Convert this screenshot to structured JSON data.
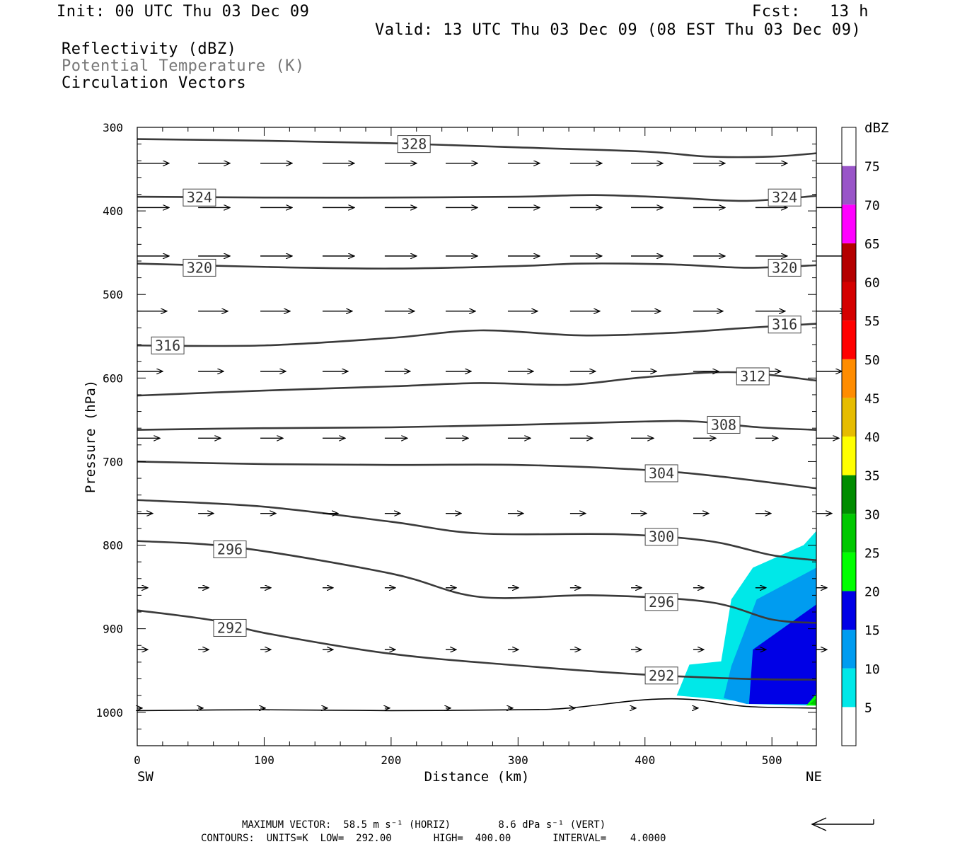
{
  "header": {
    "init": "Init: 00 UTC Thu 03 Dec 09",
    "fcst": "Fcst:   13 h",
    "valid": "Valid: 13 UTC Thu 03 Dec 09 (08 EST Thu 03 Dec 09)",
    "field1": "Reflectivity (dBZ)",
    "field2": "Potential Temperature (K)",
    "field3": "Circulation Vectors"
  },
  "footer": {
    "line1": "MAXIMUM VECTOR:  58.5 m s⁻¹ (HORIZ)        8.6 dPa s⁻¹ (VERT)",
    "line2": "CONTOURS:  UNITS=K  LOW=  292.00       HIGH=  400.00       INTERVAL=    4.0000"
  },
  "colors": {
    "contour": "#3a3a3a",
    "gray_text": "#777777"
  },
  "chart_data": {
    "type": "contour",
    "xlabel": "Distance (km)",
    "ylabel": "Pressure (hPa)",
    "xlim": [
      0,
      535
    ],
    "ylim": [
      1040,
      300
    ],
    "x_ticks": [
      0,
      100,
      200,
      300,
      400,
      500
    ],
    "y_ticks": [
      300,
      400,
      500,
      600,
      700,
      800,
      900,
      1000
    ],
    "x_left_label": "SW",
    "x_right_label": "NE",
    "colorbar": {
      "title": "dBZ",
      "ticks": [
        "5",
        "10",
        "15",
        "20",
        "25",
        "30",
        "35",
        "40",
        "45",
        "50",
        "55",
        "60",
        "65",
        "70",
        "75"
      ],
      "bins": [
        {
          "from": 0,
          "to": 5,
          "color": "#ffffff"
        },
        {
          "from": 5,
          "to": 10,
          "color": "#00e8e8"
        },
        {
          "from": 10,
          "to": 15,
          "color": "#009cf0"
        },
        {
          "from": 15,
          "to": 20,
          "color": "#0000e6"
        },
        {
          "from": 20,
          "to": 25,
          "color": "#00ff00"
        },
        {
          "from": 25,
          "to": 30,
          "color": "#00c800"
        },
        {
          "from": 30,
          "to": 35,
          "color": "#008c00"
        },
        {
          "from": 35,
          "to": 40,
          "color": "#ffff00"
        },
        {
          "from": 40,
          "to": 45,
          "color": "#e6bc00"
        },
        {
          "from": 45,
          "to": 50,
          "color": "#ff8c00"
        },
        {
          "from": 50,
          "to": 55,
          "color": "#ff0000"
        },
        {
          "from": 55,
          "to": 60,
          "color": "#d40000"
        },
        {
          "from": 60,
          "to": 65,
          "color": "#b40000"
        },
        {
          "from": 65,
          "to": 70,
          "color": "#ff00ff"
        },
        {
          "from": 70,
          "to": 75,
          "color": "#9955c8"
        },
        {
          "from": 75,
          "to": 80,
          "color": "#ffffff"
        }
      ]
    },
    "reflectivity_regions": [
      {
        "dbz": 5,
        "color": "#00e8e8",
        "points": [
          [
            425,
            980
          ],
          [
            435,
            943
          ],
          [
            460,
            939
          ],
          [
            468,
            865
          ],
          [
            485,
            827
          ],
          [
            525,
            800
          ],
          [
            535,
            783
          ],
          [
            535,
            990
          ],
          [
            485,
            988
          ]
        ]
      },
      {
        "dbz": 10,
        "color": "#009cf0",
        "points": [
          [
            462,
            983
          ],
          [
            468,
            945
          ],
          [
            488,
            865
          ],
          [
            535,
            827
          ],
          [
            535,
            992
          ],
          [
            480,
            990
          ]
        ]
      },
      {
        "dbz": 15,
        "color": "#0000e6",
        "points": [
          [
            482,
            990
          ],
          [
            485,
            925
          ],
          [
            535,
            871
          ],
          [
            535,
            975
          ],
          [
            532,
            990
          ]
        ]
      },
      {
        "dbz": 20,
        "color": "#00ff00",
        "points": [
          [
            527,
            992
          ],
          [
            535,
            978
          ],
          [
            535,
            992
          ]
        ]
      },
      {
        "dbz": 25,
        "color": "#00c800",
        "points": [
          [
            530,
            990
          ],
          [
            535,
            983
          ],
          [
            535,
            991
          ]
        ]
      }
    ],
    "theta_contours": [
      {
        "value": "328",
        "points": [
          [
            0,
            314
          ],
          [
            100,
            316
          ],
          [
            200,
            319
          ],
          [
            300,
            324
          ],
          [
            400,
            329
          ],
          [
            450,
            335
          ],
          [
            500,
            335
          ],
          [
            535,
            331
          ]
        ],
        "labels": [
          [
            218,
            320
          ]
        ]
      },
      {
        "value": "324",
        "points": [
          [
            0,
            383
          ],
          [
            100,
            384
          ],
          [
            200,
            384
          ],
          [
            300,
            383
          ],
          [
            360,
            381
          ],
          [
            420,
            384
          ],
          [
            480,
            388
          ],
          [
            535,
            382
          ]
        ],
        "labels": [
          [
            49,
            384
          ],
          [
            510,
            384
          ]
        ]
      },
      {
        "value": "320",
        "points": [
          [
            0,
            463
          ],
          [
            100,
            467
          ],
          [
            200,
            469
          ],
          [
            300,
            466
          ],
          [
            350,
            463
          ],
          [
            420,
            464
          ],
          [
            480,
            468
          ],
          [
            535,
            465
          ]
        ],
        "labels": [
          [
            49,
            468
          ],
          [
            510,
            468
          ]
        ]
      },
      {
        "value": "316",
        "points": [
          [
            0,
            561
          ],
          [
            100,
            561
          ],
          [
            200,
            552
          ],
          [
            270,
            543
          ],
          [
            350,
            549
          ],
          [
            420,
            546
          ],
          [
            480,
            540
          ],
          [
            535,
            535
          ]
        ],
        "labels": [
          [
            24,
            561
          ],
          [
            510,
            536
          ]
        ]
      },
      {
        "value": "312",
        "points": [
          [
            0,
            621
          ],
          [
            100,
            615
          ],
          [
            200,
            610
          ],
          [
            270,
            606
          ],
          [
            340,
            608
          ],
          [
            400,
            599
          ],
          [
            470,
            593
          ],
          [
            535,
            603
          ]
        ],
        "labels": [
          [
            485,
            598
          ]
        ]
      },
      {
        "value": "308",
        "points": [
          [
            0,
            662
          ],
          [
            100,
            660
          ],
          [
            200,
            659
          ],
          [
            300,
            656
          ],
          [
            400,
            652
          ],
          [
            440,
            652
          ],
          [
            490,
            659
          ],
          [
            535,
            662
          ]
        ],
        "labels": [
          [
            462,
            656
          ]
        ]
      },
      {
        "value": "304",
        "points": [
          [
            0,
            700
          ],
          [
            100,
            703
          ],
          [
            200,
            704
          ],
          [
            300,
            704
          ],
          [
            400,
            710
          ],
          [
            460,
            718
          ],
          [
            535,
            732
          ]
        ],
        "labels": [
          [
            413,
            714
          ]
        ]
      },
      {
        "value": "300",
        "points": [
          [
            0,
            746
          ],
          [
            100,
            754
          ],
          [
            200,
            772
          ],
          [
            270,
            786
          ],
          [
            380,
            787
          ],
          [
            450,
            795
          ],
          [
            500,
            812
          ],
          [
            535,
            818
          ]
        ],
        "labels": [
          [
            413,
            790
          ]
        ]
      },
      {
        "value": "296",
        "points": [
          [
            0,
            795
          ],
          [
            80,
            803
          ],
          [
            200,
            834
          ],
          [
            270,
            862
          ],
          [
            360,
            860
          ],
          [
            450,
            868
          ],
          [
            500,
            889
          ],
          [
            535,
            893
          ]
        ],
        "labels": [
          [
            73,
            805
          ],
          [
            413,
            868
          ]
        ]
      },
      {
        "value": "292",
        "points": [
          [
            0,
            878
          ],
          [
            60,
            890
          ],
          [
            100,
            905
          ],
          [
            200,
            930
          ],
          [
            300,
            944
          ],
          [
            400,
            955
          ],
          [
            480,
            960
          ],
          [
            535,
            961
          ]
        ],
        "labels": [
          [
            73,
            899
          ],
          [
            413,
            956
          ]
        ]
      }
    ],
    "surface_line": [
      [
        0,
        998
      ],
      [
        100,
        997
      ],
      [
        200,
        998
      ],
      [
        300,
        997
      ],
      [
        340,
        995
      ],
      [
        400,
        985
      ],
      [
        440,
        985
      ],
      [
        480,
        993
      ],
      [
        535,
        995
      ]
    ],
    "vector_rows": [
      {
        "p": 343,
        "dp": 0,
        "len": 45,
        "xs": [
          0,
          48,
          97,
          146,
          195,
          243,
          292,
          341,
          389,
          438,
          487,
          535
        ]
      },
      {
        "p": 396,
        "dp": 0,
        "len": 45,
        "xs": [
          0,
          48,
          97,
          146,
          195,
          243,
          292,
          341,
          389,
          438,
          487,
          535
        ]
      },
      {
        "p": 454,
        "dp": 0,
        "len": 45,
        "xs": [
          0,
          48,
          97,
          146,
          195,
          243,
          292,
          341,
          389,
          438,
          487,
          535
        ]
      },
      {
        "p": 520,
        "dp": 0,
        "len": 42,
        "xs": [
          0,
          48,
          97,
          146,
          195,
          243,
          292,
          341,
          389,
          438,
          487,
          535
        ]
      },
      {
        "p": 592,
        "dp": 0,
        "len": 36,
        "xs": [
          0,
          48,
          97,
          146,
          195,
          243,
          292,
          341,
          389,
          438,
          487,
          535
        ]
      },
      {
        "p": 672,
        "dp": 0,
        "len": 32,
        "xs": [
          0,
          48,
          97,
          146,
          195,
          243,
          292,
          341,
          389,
          438,
          487,
          535
        ]
      },
      {
        "p": 762,
        "dp": 0,
        "len": 22,
        "xs": [
          0,
          48,
          97,
          146,
          195,
          243,
          292,
          341,
          389,
          438,
          487,
          535
        ]
      },
      {
        "p": 851,
        "dp": 0,
        "len": 15,
        "xs": [
          0,
          48,
          97,
          146,
          195,
          243,
          292,
          341,
          389,
          438,
          487,
          535
        ]
      },
      {
        "p": 925,
        "dp": 0,
        "len": 15,
        "xs": [
          0,
          48,
          97,
          146,
          195,
          243,
          292,
          341,
          389,
          438,
          487,
          535
        ]
      },
      {
        "p": 995,
        "dp": 0,
        "len": 7,
        "xs": [
          0,
          48,
          97,
          146,
          195,
          243,
          292,
          341,
          389,
          438
        ]
      }
    ]
  }
}
